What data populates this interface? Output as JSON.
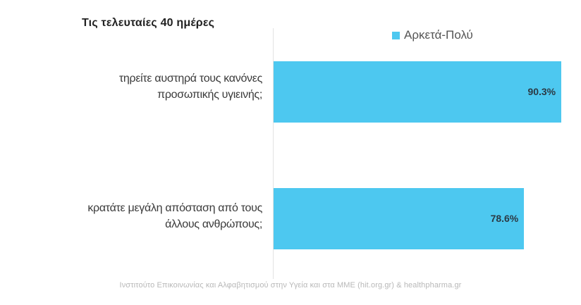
{
  "chart_data": {
    "type": "bar",
    "orientation": "horizontal",
    "title": "Τις τελευταίες 40 ημέρες",
    "categories": [
      [
        "τηρείτε αυστηρά τους κανόνες",
        "προσωπικής υγιεινής;"
      ],
      [
        "κρατάτε μεγάλη απόσταση από τους",
        "άλλους ανθρώπους;"
      ]
    ],
    "series": [
      {
        "name": "Αρκετά-Πολύ",
        "values": [
          90.3,
          78.6
        ],
        "labels": [
          "90.3%",
          "78.6%"
        ]
      }
    ],
    "xlim": [
      0,
      100
    ],
    "grid": false,
    "legend_position": "top-right"
  },
  "colors": {
    "bar": "#4dc8f0"
  },
  "source": "Ινστιτούτο Επικοινωνίας και Αλφαβητισμού στην Υγεία και στα ΜΜΕ (hit.org.gr) & healthpharma.gr"
}
